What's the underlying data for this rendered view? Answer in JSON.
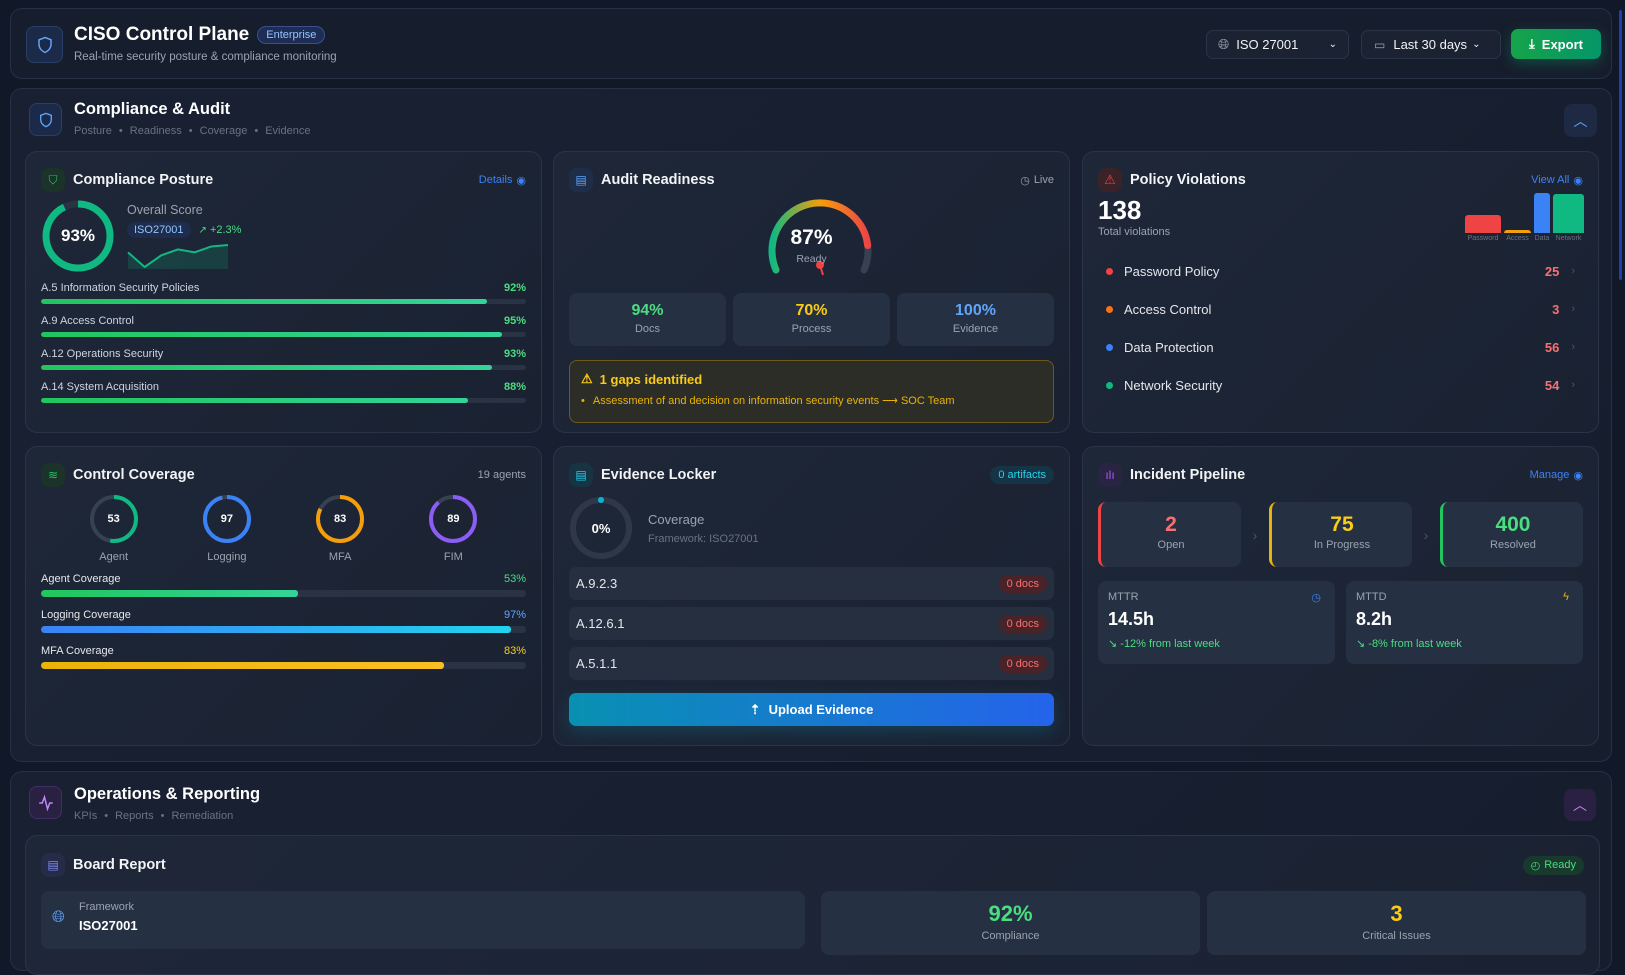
{
  "header": {
    "title": "CISO Control Plane",
    "badge": "Enterprise",
    "subtitle": "Real-time security posture & compliance monitoring",
    "framework_select": "ISO 27001",
    "date_select": "Last 30 days",
    "export_label": "Export"
  },
  "section1": {
    "title": "Compliance & Audit",
    "crumbs": [
      "Posture",
      "Readiness",
      "Coverage",
      "Evidence"
    ]
  },
  "posture": {
    "title": "Compliance Posture",
    "link": "Details",
    "score": 93,
    "score_label": "93%",
    "overall_label": "Overall Score",
    "framework": "ISO27001",
    "trend": "+2.3%",
    "spark": [
      6,
      1,
      5,
      7,
      6,
      8,
      8.5
    ],
    "controls": [
      {
        "label": "A.5 Information Security Policies",
        "value": 92,
        "display": "92%"
      },
      {
        "label": "A.9 Access Control",
        "value": 95,
        "display": "95%"
      },
      {
        "label": "A.12 Operations Security",
        "value": 93,
        "display": "93%"
      },
      {
        "label": "A.14 System Acquisition",
        "value": 88,
        "display": "88%"
      }
    ]
  },
  "audit": {
    "title": "Audit Readiness",
    "live": "Live",
    "value": 87,
    "value_label": "87%",
    "ready_label": "Ready",
    "stats": [
      {
        "value": "94%",
        "label": "Docs",
        "color": "#4ade80"
      },
      {
        "value": "70%",
        "label": "Process",
        "color": "#facc15"
      },
      {
        "value": "100%",
        "label": "Evidence",
        "color": "#60a5fa"
      }
    ],
    "gaps_title": "1 gaps identified",
    "gap_item": "Assessment of and decision on information security events ⟶ SOC Team"
  },
  "violations": {
    "title": "Policy Violations",
    "link": "View All",
    "total": "138",
    "total_label": "Total violations",
    "items": [
      {
        "label": "Password Policy",
        "short": "Password",
        "count": 25,
        "color": "#ef4444"
      },
      {
        "label": "Access Control",
        "short": "Access",
        "count": 3,
        "color": "#f59e0b",
        "dot": "#f97316"
      },
      {
        "label": "Data Protection",
        "short": "Data",
        "count": 56,
        "color": "#3b82f6"
      },
      {
        "label": "Network Security",
        "short": "Network",
        "count": 54,
        "color": "#10b981"
      }
    ]
  },
  "coverage": {
    "title": "Control Coverage",
    "agents": "19 agents",
    "rings": [
      {
        "label": "Agent",
        "value": 53,
        "color": "#10b981"
      },
      {
        "label": "Logging",
        "value": 97,
        "color": "#3b82f6"
      },
      {
        "label": "MFA",
        "value": 83,
        "color": "#f59e0b"
      },
      {
        "label": "FIM",
        "value": 89,
        "color": "#8b5cf6"
      }
    ],
    "bars": [
      {
        "label": "Agent Coverage",
        "value": 53,
        "display": "53%",
        "color": "#4ade80",
        "fill": "linear-gradient(90deg,#22c55e,#34d399)"
      },
      {
        "label": "Logging Coverage",
        "value": 97,
        "display": "97%",
        "color": "#60a5fa",
        "fill": "linear-gradient(90deg,#3b82f6,#22d3ee)"
      },
      {
        "label": "MFA Coverage",
        "value": 83,
        "display": "83%",
        "color": "#facc15",
        "fill": "linear-gradient(90deg,#eab308,#fbbf24)"
      }
    ]
  },
  "evidence": {
    "title": "Evidence Locker",
    "artifacts": "0 artifacts",
    "coverage": 0,
    "coverage_label": "0%",
    "coverage_title": "Coverage",
    "framework": "Framework: ISO27001",
    "rows": [
      {
        "control": "A.9.2.3",
        "docs": "0 docs"
      },
      {
        "control": "A.12.6.1",
        "docs": "0 docs"
      },
      {
        "control": "A.5.1.1",
        "docs": "0 docs"
      }
    ],
    "upload_label": "Upload Evidence"
  },
  "incidents": {
    "title": "Incident Pipeline",
    "link": "Manage",
    "stages": [
      {
        "value": "2",
        "label": "Open",
        "color": "#f87171",
        "edge": "#ef4444"
      },
      {
        "value": "75",
        "label": "In Progress",
        "color": "#facc15",
        "edge": "#eab308"
      },
      {
        "value": "400",
        "label": "Resolved",
        "color": "#4ade80",
        "edge": "#22c55e"
      }
    ],
    "metrics": [
      {
        "label": "MTTR",
        "value": "14.5h",
        "change": "-12% from last week"
      },
      {
        "label": "MTTD",
        "value": "8.2h",
        "change": "-8% from last week"
      }
    ]
  },
  "section2": {
    "title": "Operations & Reporting",
    "crumbs": [
      "KPIs",
      "Reports",
      "Remediation"
    ]
  },
  "board": {
    "title": "Board Report",
    "status": "Ready",
    "framework_label": "Framework",
    "framework": "ISO27001",
    "compliance": "92%",
    "compliance_label": "Compliance",
    "critical": "3",
    "critical_label": "Critical Issues"
  }
}
